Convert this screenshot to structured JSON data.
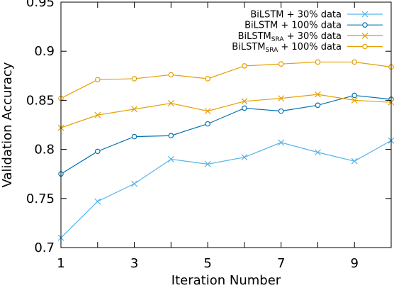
{
  "chart_data": {
    "type": "line",
    "xlabel": "Iteration Number",
    "ylabel": "Validation Accuracy",
    "xlim": [
      1,
      10
    ],
    "ylim": [
      0.7,
      0.95
    ],
    "xticks": [
      1,
      3,
      5,
      7,
      9
    ],
    "xtick_labels": [
      "1",
      "3",
      "5",
      "7",
      "9"
    ],
    "yticks": [
      0.7,
      0.75,
      0.8,
      0.85,
      0.9,
      0.95
    ],
    "ytick_labels": [
      "0.7",
      "0.75",
      "0.8",
      "0.85",
      "0.9",
      "0.95"
    ],
    "grid": false,
    "legend_position": "top-right",
    "x": [
      1,
      2,
      3,
      4,
      5,
      6,
      7,
      8,
      9,
      10
    ],
    "series": [
      {
        "name": "BiLSTM + 30% data",
        "name_main": "BiLSTM",
        "name_sub": "",
        "name_rest": " + 30% data",
        "color": "#56b4e9",
        "marker": "x",
        "values": [
          0.71,
          0.747,
          0.765,
          0.79,
          0.785,
          0.792,
          0.807,
          0.797,
          0.788,
          0.809
        ]
      },
      {
        "name": "BiLSTM + 100% data",
        "name_main": "BiLSTM",
        "name_sub": "",
        "name_rest": " + 100% data",
        "color": "#0072b2",
        "marker": "o",
        "values": [
          0.775,
          0.798,
          0.813,
          0.814,
          0.826,
          0.842,
          0.839,
          0.845,
          0.855,
          0.851
        ]
      },
      {
        "name": "BiLSTM_SRA + 30% data",
        "name_main": "BiLSTM",
        "name_sub": "SRA",
        "name_rest": " + 30% data",
        "color": "#e69f00",
        "marker": "x",
        "values": [
          0.822,
          0.835,
          0.841,
          0.847,
          0.839,
          0.849,
          0.852,
          0.856,
          0.85,
          0.848
        ]
      },
      {
        "name": "BiLSTM_SRA + 100% data",
        "name_main": "BiLSTM",
        "name_sub": "SRA",
        "name_rest": " + 100% data",
        "color": "#e69f00",
        "marker": "o",
        "values": [
          0.852,
          0.871,
          0.872,
          0.876,
          0.872,
          0.885,
          0.887,
          0.889,
          0.889,
          0.884
        ]
      }
    ]
  }
}
